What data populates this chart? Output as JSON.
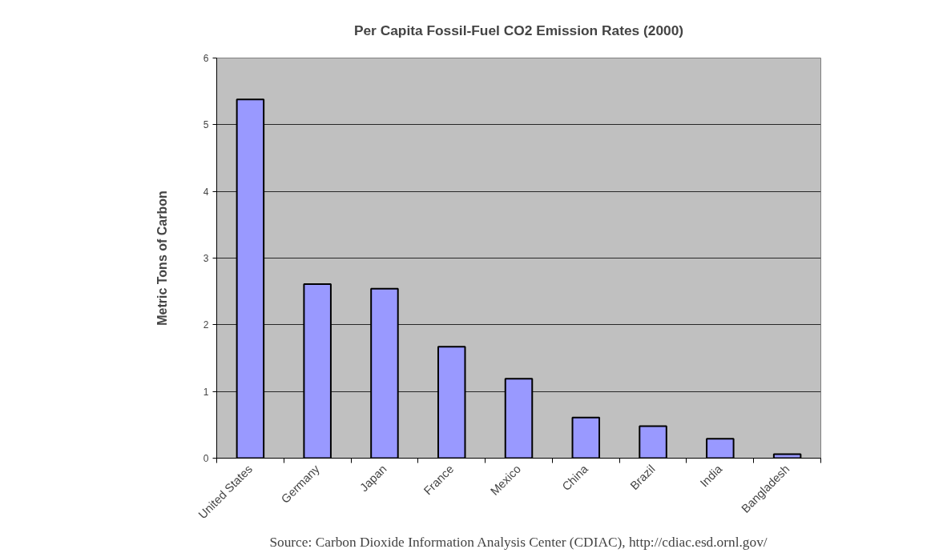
{
  "chart_data": {
    "type": "bar",
    "title": "Per Capita Fossil-Fuel CO2 Emission Rates (2000)",
    "ylabel": "Metric Tons of Carbon",
    "categories": [
      "United States",
      "Germany",
      "Japan",
      "France",
      "Mexico",
      "China",
      "Brazil",
      "India",
      "Bangladesh"
    ],
    "values": [
      5.38,
      2.61,
      2.54,
      1.67,
      1.19,
      0.61,
      0.48,
      0.29,
      0.06
    ],
    "color": "#9999ff",
    "ylim": [
      0,
      6
    ],
    "yticks": [
      0,
      1,
      2,
      3,
      4,
      5,
      6
    ],
    "grid": "y",
    "annotations": [
      "Source: Carbon Dioxide Information Analysis Center (CDIAC), http://cdiac.esd.ornl.gov/"
    ]
  }
}
